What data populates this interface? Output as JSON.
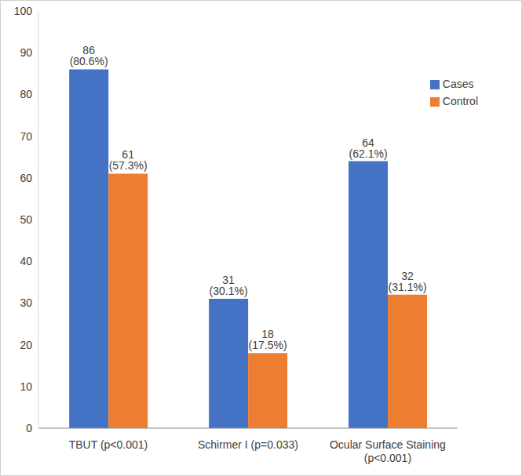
{
  "chart_data": {
    "type": "bar",
    "categories": [
      "TBUT (p<0.001)",
      "Schirmer I (p=0.033)",
      "Ocular Surface Staining (p<0.001)"
    ],
    "series": [
      {
        "name": "Cases",
        "color": "#4472c4",
        "values": [
          86,
          31,
          64
        ],
        "value_labels": [
          "86 (80.6%)",
          "31 (30.1%)",
          "64 (62.1%)"
        ]
      },
      {
        "name": "Control",
        "color": "#ed7d31",
        "values": [
          61,
          18,
          32
        ],
        "value_labels": [
          "61 (57.3%)",
          "18 (17.5%)",
          "32 (31.1%)"
        ]
      }
    ],
    "ylim": [
      0,
      100
    ],
    "yticks": [
      0,
      10,
      20,
      30,
      40,
      50,
      60,
      70,
      80,
      90,
      100
    ],
    "grid": false,
    "legend": "upper right",
    "data_labels": true
  }
}
